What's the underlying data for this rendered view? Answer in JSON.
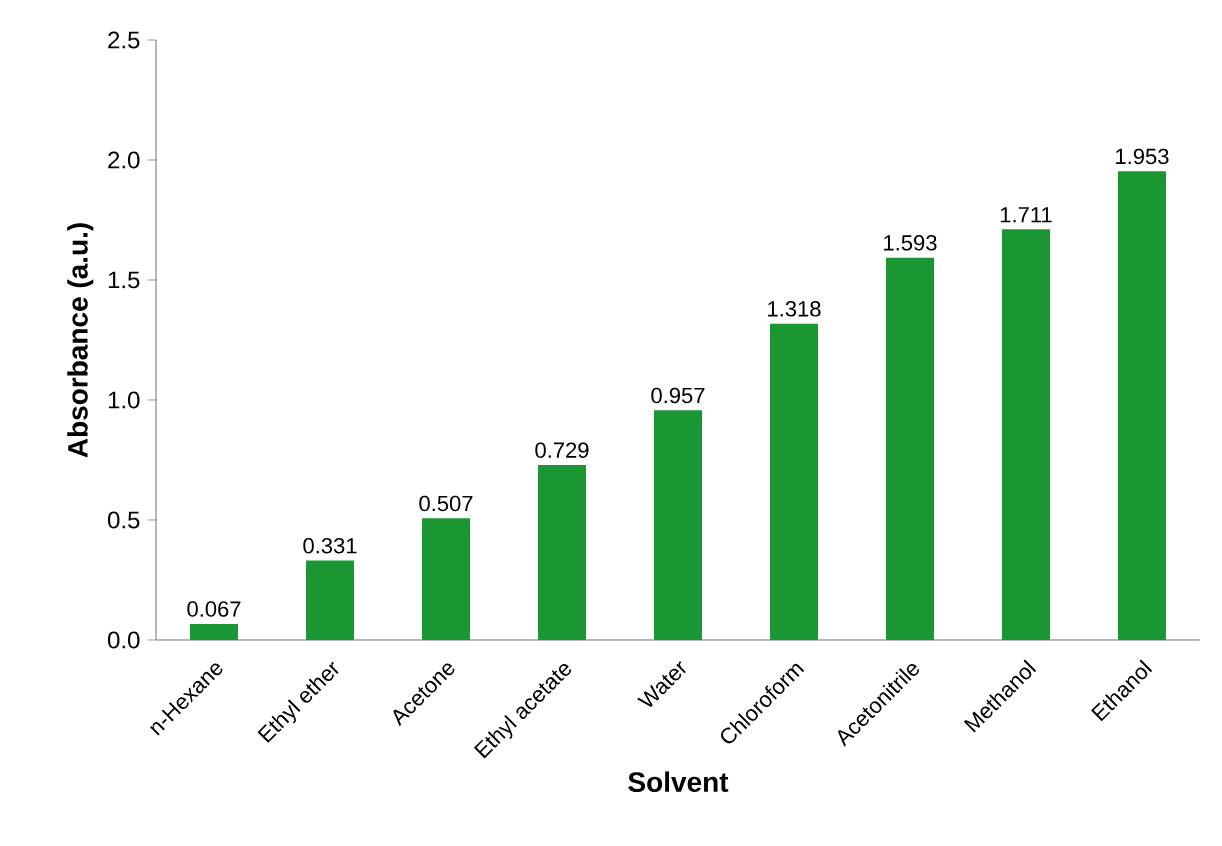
{
  "chart_data": {
    "type": "bar",
    "xlabel": "Solvent",
    "ylabel": "Absorbance (a.u.)",
    "categories": [
      "n-Hexane",
      "Ethyl ether",
      "Acetone",
      "Ethyl acetate",
      "Water",
      "Chloroform",
      "Acetonitrile",
      "Methanol",
      "Ethanol"
    ],
    "values": [
      0.067,
      0.331,
      0.507,
      0.729,
      0.957,
      1.318,
      1.593,
      1.711,
      1.953
    ],
    "color": "#1a9632",
    "data_labels": true,
    "grid": false,
    "ylim": [
      0,
      2.5
    ],
    "yticks": [
      {
        "value": 0,
        "label": "0.0"
      },
      {
        "value": 0.5,
        "label": "0.5"
      },
      {
        "value": 1,
        "label": "1.0"
      },
      {
        "value": 1.5,
        "label": "1.5"
      },
      {
        "value": 2,
        "label": "2.0"
      },
      {
        "value": 2.5,
        "label": "2.5"
      }
    ]
  }
}
